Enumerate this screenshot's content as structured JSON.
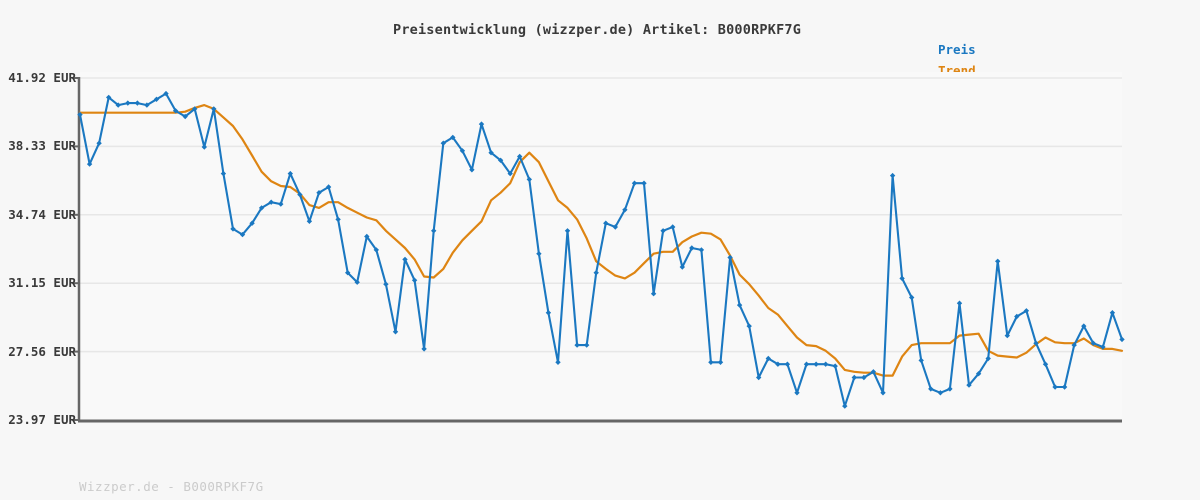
{
  "title": "Preisentwicklung (wizzper.de) Artikel: B000RPKF7G",
  "legend": {
    "preis_label": "Preis",
    "trend_label": "Trend"
  },
  "footer": "Wizzper.de - B000RPKF7G",
  "colors": {
    "preis": "#1b78c1",
    "trend": "#de8513",
    "axis": "#666666",
    "grid": "#e7e7e7",
    "tick_label": "#3a3a3a",
    "title_text": "#3a3a3a",
    "footer_text": "#cbcbcb",
    "background": "#f7f7f7",
    "plot_background": "#f9f9f9"
  },
  "chart_data": {
    "type": "line",
    "title": "Preisentwicklung (wizzper.de) Artikel: B000RPKF7G",
    "xlabel": "",
    "ylabel": "",
    "ylim": [
      23.97,
      41.92
    ],
    "grid": true,
    "legend_position": "top-right",
    "y_ticks": [
      {
        "value": 41.92,
        "label": "41.92 EUR"
      },
      {
        "value": 38.33,
        "label": "38.33 EUR"
      },
      {
        "value": 34.74,
        "label": "34.74 EUR"
      },
      {
        "value": 31.15,
        "label": "31.15 EUR"
      },
      {
        "value": 27.56,
        "label": "27.56 EUR"
      },
      {
        "value": 23.97,
        "label": "23.97 EUR"
      }
    ],
    "unit": "EUR",
    "series": [
      {
        "name": "Trend",
        "color": "#de8513",
        "marker": "none",
        "values": [
          40.1,
          40.1,
          40.1,
          40.1,
          40.1,
          40.1,
          40.1,
          40.1,
          40.1,
          40.1,
          40.1,
          40.15,
          40.35,
          40.5,
          40.3,
          39.85,
          39.4,
          38.7,
          37.85,
          37.0,
          36.5,
          36.25,
          36.2,
          35.85,
          35.25,
          35.1,
          35.4,
          35.4,
          35.1,
          34.85,
          34.6,
          34.45,
          33.9,
          33.45,
          33.0,
          32.4,
          31.5,
          31.45,
          31.9,
          32.75,
          33.4,
          33.9,
          34.4,
          35.5,
          35.9,
          36.4,
          37.5,
          38.0,
          37.5,
          36.5,
          35.5,
          35.1,
          34.5,
          33.5,
          32.3,
          31.9,
          31.55,
          31.4,
          31.7,
          32.2,
          32.7,
          32.8,
          32.8,
          33.3,
          33.6,
          33.8,
          33.75,
          33.45,
          32.6,
          31.6,
          31.1,
          30.5,
          29.85,
          29.5,
          28.9,
          28.3,
          27.9,
          27.85,
          27.6,
          27.2,
          26.6,
          26.5,
          26.45,
          26.45,
          26.3,
          26.3,
          27.3,
          27.9,
          28.0,
          28.0,
          28.0,
          28.0,
          28.4,
          28.45,
          28.5,
          27.6,
          27.35,
          27.3,
          27.25,
          27.5,
          27.95,
          28.3,
          28.05,
          28.0,
          28.0,
          28.25,
          27.9,
          27.7,
          27.7,
          27.6
        ]
      },
      {
        "name": "Preis",
        "color": "#1b78c1",
        "marker": "diamond",
        "values": [
          40.0,
          37.4,
          38.5,
          40.9,
          40.5,
          40.6,
          40.6,
          40.5,
          40.8,
          41.1,
          40.2,
          39.9,
          40.3,
          38.3,
          40.3,
          36.9,
          34.0,
          33.7,
          34.3,
          35.1,
          35.4,
          35.3,
          36.9,
          35.8,
          34.4,
          35.9,
          36.2,
          34.5,
          31.7,
          31.2,
          33.6,
          32.9,
          31.1,
          28.6,
          32.4,
          31.3,
          27.7,
          33.9,
          38.5,
          38.8,
          38.1,
          37.1,
          39.5,
          38.0,
          37.6,
          36.9,
          37.8,
          36.6,
          32.7,
          29.6,
          27.0,
          33.9,
          27.9,
          27.9,
          31.7,
          34.3,
          34.1,
          35.0,
          36.4,
          36.4,
          30.6,
          33.9,
          34.1,
          32.0,
          33.0,
          32.9,
          27.0,
          27.0,
          32.5,
          30.0,
          28.9,
          26.2,
          27.2,
          26.9,
          26.9,
          25.4,
          26.9,
          26.9,
          26.9,
          26.8,
          24.7,
          26.2,
          26.2,
          26.5,
          25.4,
          36.8,
          31.4,
          30.4,
          27.1,
          25.6,
          25.4,
          25.6,
          30.1,
          25.8,
          26.4,
          27.2,
          32.3,
          28.4,
          29.4,
          29.7,
          28.0,
          26.9,
          25.7,
          25.7,
          27.9,
          28.9,
          28.0,
          27.8,
          29.6,
          28.2
        ]
      }
    ]
  }
}
